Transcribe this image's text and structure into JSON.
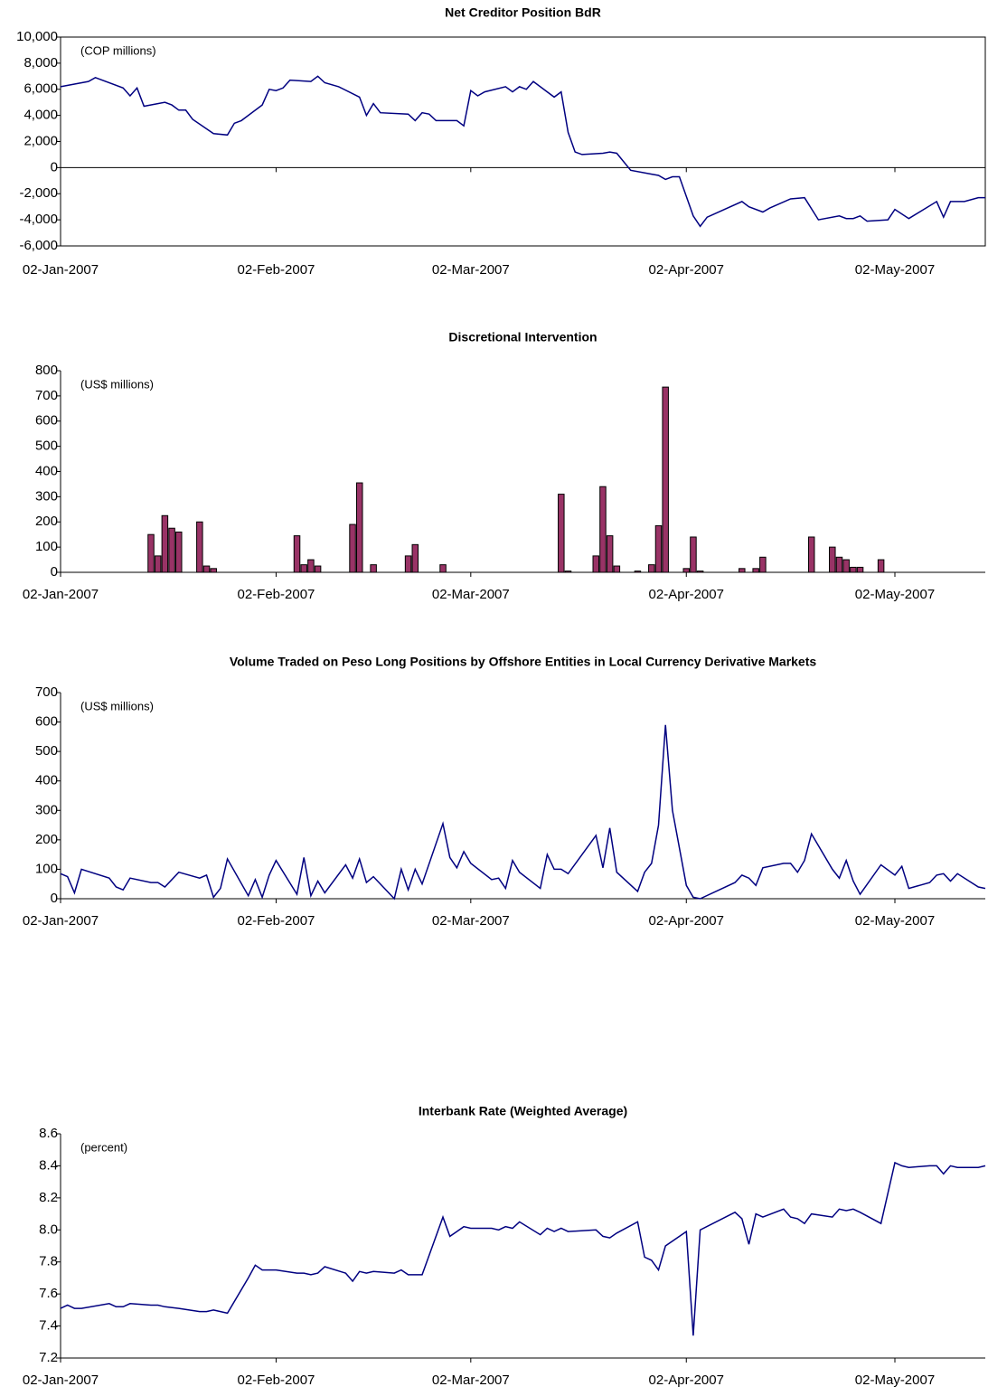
{
  "chart_data": [
    {
      "type": "line",
      "title": "Net Creditor Position BdR",
      "annotation": "(COP millions)",
      "color": "#000080",
      "x": [
        "2007-01-02",
        "2007-01-04",
        "2007-01-06",
        "2007-01-07",
        "2007-01-11",
        "2007-01-12",
        "2007-01-13",
        "2007-01-14",
        "2007-01-17",
        "2007-01-18",
        "2007-01-19",
        "2007-01-20",
        "2007-01-21",
        "2007-01-24",
        "2007-01-26",
        "2007-01-27",
        "2007-01-28",
        "2007-01-31",
        "2007-02-01",
        "2007-02-02",
        "2007-02-03",
        "2007-02-04",
        "2007-02-07",
        "2007-02-08",
        "2007-02-09",
        "2007-02-11",
        "2007-02-14",
        "2007-02-15",
        "2007-02-16",
        "2007-02-17",
        "2007-02-21",
        "2007-02-22",
        "2007-02-23",
        "2007-02-24",
        "2007-02-25",
        "2007-02-28",
        "2007-03-01",
        "2007-03-02",
        "2007-03-03",
        "2007-03-04",
        "2007-03-07",
        "2007-03-08",
        "2007-03-09",
        "2007-03-10",
        "2007-03-11",
        "2007-03-14",
        "2007-03-15",
        "2007-03-16",
        "2007-03-17",
        "2007-03-18",
        "2007-03-21",
        "2007-03-22",
        "2007-03-23",
        "2007-03-25",
        "2007-03-28",
        "2007-03-29",
        "2007-03-30",
        "2007-03-31",
        "2007-04-01",
        "2007-04-03",
        "2007-04-04",
        "2007-04-05",
        "2007-04-10",
        "2007-04-11",
        "2007-04-13",
        "2007-04-14",
        "2007-04-17",
        "2007-04-19",
        "2007-04-21",
        "2007-04-24",
        "2007-04-25",
        "2007-04-26",
        "2007-04-27",
        "2007-04-28",
        "2007-05-01",
        "2007-05-02",
        "2007-05-04",
        "2007-05-08",
        "2007-05-09",
        "2007-05-10",
        "2007-05-12",
        "2007-05-14",
        "2007-05-15"
      ],
      "values": [
        6200,
        6400,
        6600,
        6900,
        6100,
        5500,
        6100,
        4700,
        5000,
        4800,
        4400,
        4400,
        3700,
        2600,
        2500,
        3400,
        3600,
        4800,
        6000,
        5900,
        6100,
        6700,
        6600,
        7000,
        6500,
        6200,
        5400,
        4000,
        4900,
        4200,
        4100,
        3600,
        4200,
        4100,
        3600,
        3600,
        3200,
        5900,
        5500,
        5800,
        6200,
        5800,
        6200,
        6000,
        6600,
        5400,
        5800,
        2700,
        1200,
        1000,
        1100,
        1200,
        1100,
        -200,
        -500,
        -600,
        -900,
        -700,
        -700,
        -3700,
        -4500,
        -3800,
        -2600,
        -3000,
        -3400,
        -3100,
        -2400,
        -2300,
        -4000,
        -3700,
        -3900,
        -3900,
        -3700,
        -4100,
        -4000,
        -3200,
        -3900,
        -2600,
        -3800,
        -2600,
        -2600,
        -2300,
        -2300
      ],
      "xlim": [
        "2007-01-02",
        "2007-05-15"
      ],
      "xticks": [
        {
          "value": "2007-01-02",
          "label": "02-Jan-2007"
        },
        {
          "value": "2007-02-02",
          "label": "02-Feb-2007"
        },
        {
          "value": "2007-03-02",
          "label": "02-Mar-2007"
        },
        {
          "value": "2007-04-02",
          "label": "02-Apr-2007"
        },
        {
          "value": "2007-05-02",
          "label": "02-May-2007"
        }
      ],
      "ylim": [
        -6000,
        10000
      ],
      "yticks": [
        {
          "value": -6000,
          "label": "-6,000"
        },
        {
          "value": -4000,
          "label": "-4,000"
        },
        {
          "value": -2000,
          "label": "-2,000"
        },
        0,
        {
          "value": 2000,
          "label": "2,000"
        },
        {
          "value": 4000,
          "label": "4,000"
        },
        {
          "value": 6000,
          "label": "6,000"
        },
        {
          "value": 8000,
          "label": "8,000"
        },
        {
          "value": 10000,
          "label": "10,000"
        }
      ],
      "frame": true
    },
    {
      "type": "bar",
      "title": "Discretional Intervention",
      "annotation": "(US$ millions)",
      "color": "#993366",
      "x": [
        "2007-01-15",
        "2007-01-16",
        "2007-01-17",
        "2007-01-18",
        "2007-01-19",
        "2007-01-22",
        "2007-01-23",
        "2007-01-24",
        "2007-02-05",
        "2007-02-06",
        "2007-02-07",
        "2007-02-08",
        "2007-02-13",
        "2007-02-14",
        "2007-02-16",
        "2007-02-21",
        "2007-02-22",
        "2007-02-26",
        "2007-03-15",
        "2007-03-16",
        "2007-03-20",
        "2007-03-21",
        "2007-03-22",
        "2007-03-23",
        "2007-03-26",
        "2007-03-28",
        "2007-03-29",
        "2007-03-30",
        "2007-04-02",
        "2007-04-03",
        "2007-04-04",
        "2007-04-10",
        "2007-04-12",
        "2007-04-13",
        "2007-04-20",
        "2007-04-23",
        "2007-04-24",
        "2007-04-25",
        "2007-04-26",
        "2007-04-27",
        "2007-04-30"
      ],
      "values": [
        150,
        65,
        225,
        175,
        160,
        200,
        25,
        15,
        145,
        30,
        50,
        25,
        190,
        355,
        30,
        65,
        110,
        30,
        310,
        5,
        65,
        340,
        145,
        25,
        5,
        30,
        185,
        735,
        15,
        140,
        5,
        15,
        15,
        60,
        140,
        100,
        60,
        50,
        20,
        20,
        50
      ],
      "xlim": [
        "2007-01-02",
        "2007-05-15"
      ],
      "xticks": [
        {
          "value": "2007-01-02",
          "label": "02-Jan-2007"
        },
        {
          "value": "2007-02-02",
          "label": "02-Feb-2007"
        },
        {
          "value": "2007-03-02",
          "label": "02-Mar-2007"
        },
        {
          "value": "2007-04-02",
          "label": "02-Apr-2007"
        },
        {
          "value": "2007-05-02",
          "label": "02-May-2007"
        }
      ],
      "ylim": [
        0,
        800
      ],
      "yticks": [
        0,
        100,
        200,
        300,
        400,
        500,
        600,
        700,
        800
      ]
    },
    {
      "type": "line",
      "title": "Volume Traded on Peso Long Positions by Offshore Entities in Local Currency Derivative Markets",
      "annotation": "(US$ millions)",
      "color": "#000080",
      "x": [
        "2007-01-02",
        "2007-01-03",
        "2007-01-04",
        "2007-01-05",
        "2007-01-09",
        "2007-01-10",
        "2007-01-11",
        "2007-01-12",
        "2007-01-15",
        "2007-01-16",
        "2007-01-17",
        "2007-01-19",
        "2007-01-22",
        "2007-01-23",
        "2007-01-24",
        "2007-01-25",
        "2007-01-26",
        "2007-01-29",
        "2007-01-30",
        "2007-01-31",
        "2007-02-01",
        "2007-02-02",
        "2007-02-05",
        "2007-02-06",
        "2007-02-07",
        "2007-02-08",
        "2007-02-09",
        "2007-02-12",
        "2007-02-13",
        "2007-02-14",
        "2007-02-15",
        "2007-02-16",
        "2007-02-19",
        "2007-02-20",
        "2007-02-21",
        "2007-02-22",
        "2007-02-23",
        "2007-02-26",
        "2007-02-27",
        "2007-02-28",
        "2007-03-01",
        "2007-03-02",
        "2007-03-05",
        "2007-03-06",
        "2007-03-07",
        "2007-03-08",
        "2007-03-09",
        "2007-03-12",
        "2007-03-13",
        "2007-03-14",
        "2007-03-15",
        "2007-03-16",
        "2007-03-20",
        "2007-03-21",
        "2007-03-22",
        "2007-03-23",
        "2007-03-26",
        "2007-03-27",
        "2007-03-28",
        "2007-03-29",
        "2007-03-30",
        "2007-03-31",
        "2007-04-02",
        "2007-04-03",
        "2007-04-04",
        "2007-04-09",
        "2007-04-10",
        "2007-04-11",
        "2007-04-12",
        "2007-04-13",
        "2007-04-16",
        "2007-04-17",
        "2007-04-18",
        "2007-04-19",
        "2007-04-20",
        "2007-04-23",
        "2007-04-24",
        "2007-04-25",
        "2007-04-26",
        "2007-04-27",
        "2007-04-30",
        "2007-05-02",
        "2007-05-03",
        "2007-05-04",
        "2007-05-07",
        "2007-05-08",
        "2007-05-09",
        "2007-05-10",
        "2007-05-11",
        "2007-05-14",
        "2007-05-15"
      ],
      "values": [
        85,
        75,
        20,
        100,
        70,
        40,
        30,
        70,
        55,
        55,
        40,
        90,
        70,
        80,
        5,
        35,
        135,
        10,
        65,
        5,
        80,
        130,
        15,
        140,
        10,
        60,
        20,
        115,
        70,
        135,
        55,
        75,
        0,
        100,
        30,
        100,
        50,
        255,
        140,
        105,
        160,
        120,
        65,
        70,
        35,
        130,
        90,
        35,
        150,
        100,
        100,
        85,
        215,
        105,
        240,
        90,
        25,
        90,
        120,
        250,
        590,
        300,
        45,
        5,
        0,
        55,
        80,
        70,
        45,
        105,
        120,
        120,
        90,
        130,
        220,
        100,
        70,
        130,
        60,
        15,
        115,
        80,
        110,
        35,
        55,
        80,
        85,
        60,
        85,
        40,
        35
      ],
      "xlim": [
        "2007-01-02",
        "2007-05-15"
      ],
      "xticks": [
        {
          "value": "2007-01-02",
          "label": "02-Jan-2007"
        },
        {
          "value": "2007-02-02",
          "label": "02-Feb-2007"
        },
        {
          "value": "2007-03-02",
          "label": "02-Mar-2007"
        },
        {
          "value": "2007-04-02",
          "label": "02-Apr-2007"
        },
        {
          "value": "2007-05-02",
          "label": "02-May-2007"
        }
      ],
      "ylim": [
        0,
        700
      ],
      "yticks": [
        0,
        100,
        200,
        300,
        400,
        500,
        600,
        700
      ]
    },
    {
      "type": "line",
      "title": "Interbank Rate (Weighted Average)",
      "annotation": "(percent)",
      "color": "#000080",
      "x": [
        "2007-01-02",
        "2007-01-03",
        "2007-01-04",
        "2007-01-05",
        "2007-01-09",
        "2007-01-10",
        "2007-01-11",
        "2007-01-12",
        "2007-01-15",
        "2007-01-16",
        "2007-01-17",
        "2007-01-19",
        "2007-01-22",
        "2007-01-23",
        "2007-01-24",
        "2007-01-25",
        "2007-01-26",
        "2007-01-29",
        "2007-01-30",
        "2007-01-31",
        "2007-02-01",
        "2007-02-02",
        "2007-02-05",
        "2007-02-06",
        "2007-02-07",
        "2007-02-08",
        "2007-02-09",
        "2007-02-12",
        "2007-02-13",
        "2007-02-14",
        "2007-02-15",
        "2007-02-16",
        "2007-02-19",
        "2007-02-20",
        "2007-02-21",
        "2007-02-22",
        "2007-02-23",
        "2007-02-26",
        "2007-02-27",
        "2007-02-28",
        "2007-03-01",
        "2007-03-02",
        "2007-03-05",
        "2007-03-06",
        "2007-03-07",
        "2007-03-08",
        "2007-03-09",
        "2007-03-12",
        "2007-03-13",
        "2007-03-14",
        "2007-03-15",
        "2007-03-16",
        "2007-03-20",
        "2007-03-21",
        "2007-03-22",
        "2007-03-23",
        "2007-03-26",
        "2007-03-27",
        "2007-03-28",
        "2007-03-29",
        "2007-03-30",
        "2007-04-02",
        "2007-04-03",
        "2007-04-04",
        "2007-04-09",
        "2007-04-10",
        "2007-04-11",
        "2007-04-12",
        "2007-04-13",
        "2007-04-16",
        "2007-04-17",
        "2007-04-18",
        "2007-04-19",
        "2007-04-20",
        "2007-04-23",
        "2007-04-24",
        "2007-04-25",
        "2007-04-26",
        "2007-04-27",
        "2007-04-30",
        "2007-05-02",
        "2007-05-03",
        "2007-05-04",
        "2007-05-07",
        "2007-05-08",
        "2007-05-09",
        "2007-05-10",
        "2007-05-11",
        "2007-05-14",
        "2007-05-15"
      ],
      "values": [
        7.51,
        7.53,
        7.51,
        7.51,
        7.54,
        7.52,
        7.52,
        7.54,
        7.53,
        7.53,
        7.52,
        7.51,
        7.49,
        7.49,
        7.5,
        7.49,
        7.48,
        7.7,
        7.78,
        7.75,
        7.75,
        7.75,
        7.73,
        7.73,
        7.72,
        7.73,
        7.77,
        7.73,
        7.68,
        7.74,
        7.73,
        7.74,
        7.73,
        7.75,
        7.72,
        7.72,
        7.72,
        8.08,
        7.96,
        7.99,
        8.02,
        8.01,
        8.01,
        8.0,
        8.02,
        8.01,
        8.05,
        7.97,
        8.01,
        7.99,
        8.01,
        7.99,
        8.0,
        7.96,
        7.95,
        7.98,
        8.05,
        7.83,
        7.81,
        7.75,
        7.9,
        7.99,
        7.34,
        8.0,
        8.11,
        8.07,
        7.91,
        8.1,
        8.08,
        8.13,
        8.08,
        8.07,
        8.04,
        8.1,
        8.08,
        8.13,
        8.12,
        8.13,
        8.11,
        8.04,
        8.42,
        8.4,
        8.39,
        8.4,
        8.4,
        8.35,
        8.4,
        8.39,
        8.39,
        8.4
      ],
      "xlim": [
        "2007-01-02",
        "2007-05-15"
      ],
      "xticks": [
        {
          "value": "2007-01-02",
          "label": "02-Jan-2007"
        },
        {
          "value": "2007-02-02",
          "label": "02-Feb-2007"
        },
        {
          "value": "2007-03-02",
          "label": "02-Mar-2007"
        },
        {
          "value": "2007-04-02",
          "label": "02-Apr-2007"
        },
        {
          "value": "2007-05-02",
          "label": "02-May-2007"
        }
      ],
      "ylim": [
        7.2,
        8.6
      ],
      "yticks": [
        7.2,
        7.4,
        7.6,
        7.8,
        {
          "value": 8,
          "label": "8.0"
        },
        8.2,
        8.4,
        8.6
      ]
    }
  ]
}
